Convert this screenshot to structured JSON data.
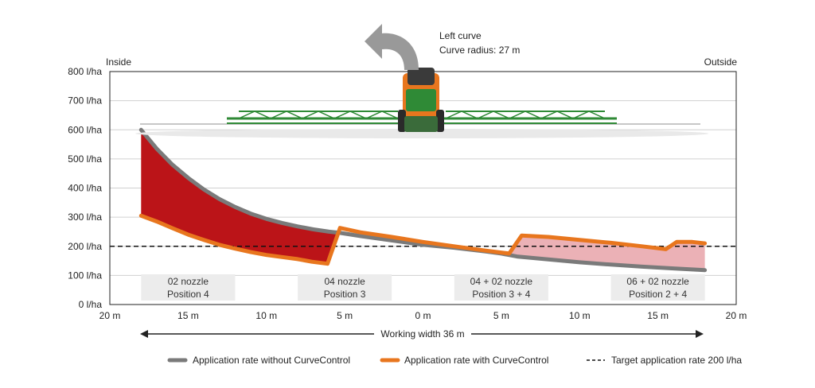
{
  "chart_data": {
    "type": "area",
    "annotation": {
      "line1": "Left curve",
      "line2": "Curve radius: 27 m"
    },
    "side_labels": {
      "left": "Inside",
      "right": "Outside"
    },
    "y_ticks": [
      "0 l/ha",
      "100 l/ha",
      "200 l/ha",
      "300 l/ha",
      "400 l/ha",
      "500 l/ha",
      "600 l/ha",
      "700 l/ha",
      "800 l/ha"
    ],
    "x_ticks": [
      "20 m",
      "15 m",
      "10 m",
      "5 m",
      "0 m",
      "5 m",
      "10 m",
      "15 m",
      "20 m"
    ],
    "ylim": [
      0,
      800
    ],
    "xlim": [
      -20,
      20
    ],
    "xlabel": "Working width 36 m",
    "target_rate": 200,
    "zones": [
      {
        "line1": "02 nozzle",
        "line2": "Position 4",
        "x_from": -18,
        "x_to": -12
      },
      {
        "line1": "04 nozzle",
        "line2": "Position 3",
        "x_from": -8,
        "x_to": -2
      },
      {
        "line1": "04 + 02 nozzle",
        "line2": "Position 3 + 4",
        "x_from": 2,
        "x_to": 8
      },
      {
        "line1": "06 + 02 nozzle",
        "line2": "Position 2 + 4",
        "x_from": 12,
        "x_to": 18
      }
    ],
    "series": [
      {
        "name": "Application rate without CurveControl",
        "color": "#7a7a7a",
        "x": [
          -18,
          -17,
          -16,
          -15,
          -14,
          -13,
          -12,
          -11,
          -10,
          -9,
          -8,
          -7,
          -6,
          -5.3,
          -4,
          -2,
          0,
          2,
          4,
          5,
          6,
          8,
          10,
          12,
          14,
          16,
          18
        ],
        "y": [
          600,
          535,
          480,
          435,
          395,
          362,
          335,
          312,
          294,
          280,
          268,
          258,
          250,
          246,
          235,
          220,
          205,
          195,
          182,
          175,
          165,
          155,
          145,
          137,
          130,
          124,
          118
        ]
      },
      {
        "name": "Application rate with CurveControl",
        "color": "#e8761e",
        "x": [
          -18,
          -17,
          -16,
          -15,
          -14,
          -13,
          -12,
          -11,
          -10,
          -9,
          -8,
          -7.1,
          -6.1,
          -5.3,
          -4,
          -2,
          0,
          2,
          4,
          5.5,
          6.3,
          8,
          10,
          12,
          14,
          15.5,
          16.2,
          17.2,
          18
        ],
        "y": [
          305,
          285,
          262,
          240,
          222,
          205,
          192,
          180,
          170,
          163,
          156,
          147,
          140,
          263,
          248,
          232,
          215,
          200,
          185,
          175,
          237,
          232,
          222,
          212,
          200,
          190,
          215,
          215,
          210
        ]
      }
    ],
    "fills": {
      "above_target": "#bb1418",
      "below_target": "#ebb1b6"
    },
    "legend": {
      "without": "Application rate without CurveControl",
      "with": "Application rate with CurveControl",
      "target": "Target application rate 200 l/ha"
    },
    "colors": {
      "without": "#7a7a7a",
      "with": "#e8761e",
      "boom": "#2f8a36",
      "body": "#e8761e",
      "arrow": "#999999"
    },
    "grid": true
  }
}
